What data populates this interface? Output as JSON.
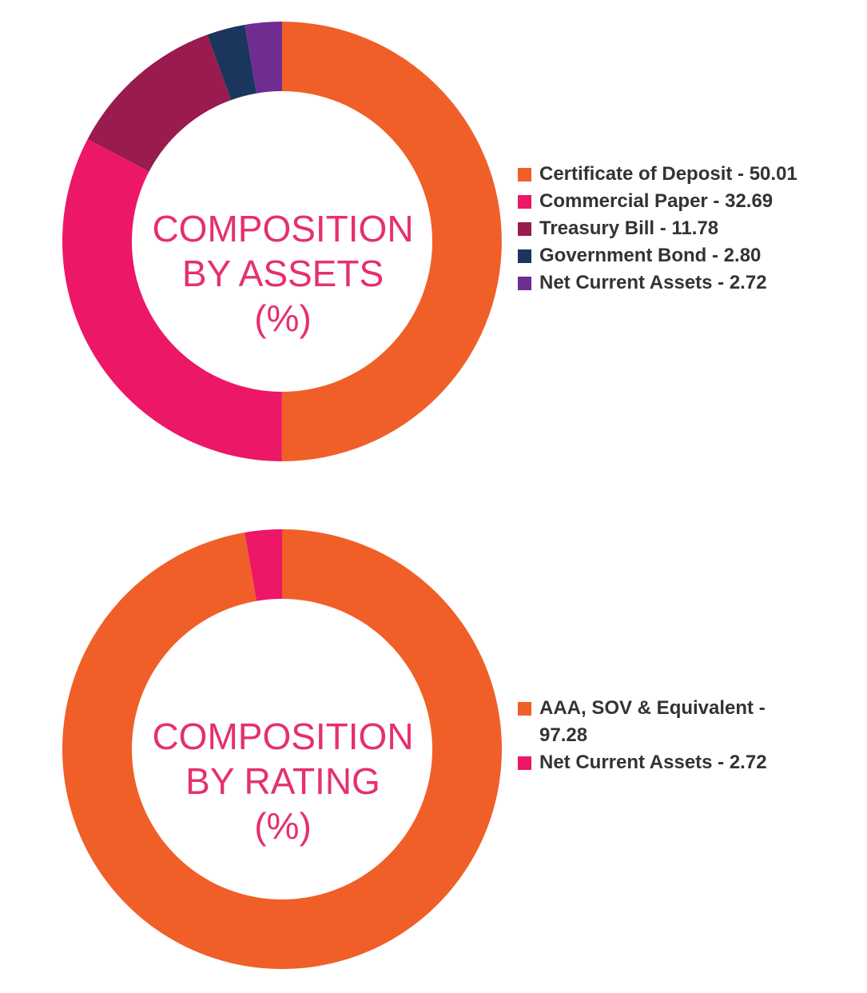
{
  "chart_data": [
    {
      "type": "pie",
      "title": "COMPOSITION BY ASSETS (%)",
      "center_label": [
        "COMPOSITION",
        "BY ASSETS",
        "(%)"
      ],
      "categories": [
        "Certificate of Deposit",
        "Commercial Paper",
        "Treasury Bill",
        "Government Bond",
        "Net Current Assets"
      ],
      "values": [
        50.01,
        32.69,
        11.78,
        2.8,
        2.72
      ],
      "colors": [
        "#f05f28",
        "#ec1766",
        "#991b4f",
        "#1b365d",
        "#6f2c91"
      ],
      "legend_labels": [
        "Certificate of Deposit - 50.01",
        "Commercial Paper - 32.69",
        "Treasury Bill - 11.78",
        "Government Bond - 2.80",
        "Net Current Assets - 2.72"
      ],
      "legend_position": "right",
      "donut": true
    },
    {
      "type": "pie",
      "title": "COMPOSITION BY RATING (%)",
      "center_label": [
        "COMPOSITION",
        "BY RATING",
        "(%)"
      ],
      "categories": [
        "AAA, SOV & Equivalent",
        "Net Current Assets"
      ],
      "values": [
        97.28,
        2.72
      ],
      "colors": [
        "#f05f28",
        "#ec1766"
      ],
      "legend_labels": [
        "AAA, SOV & Equivalent - 97.28",
        "Net Current Assets - 2.72"
      ],
      "legend_position": "right",
      "donut": true
    }
  ]
}
